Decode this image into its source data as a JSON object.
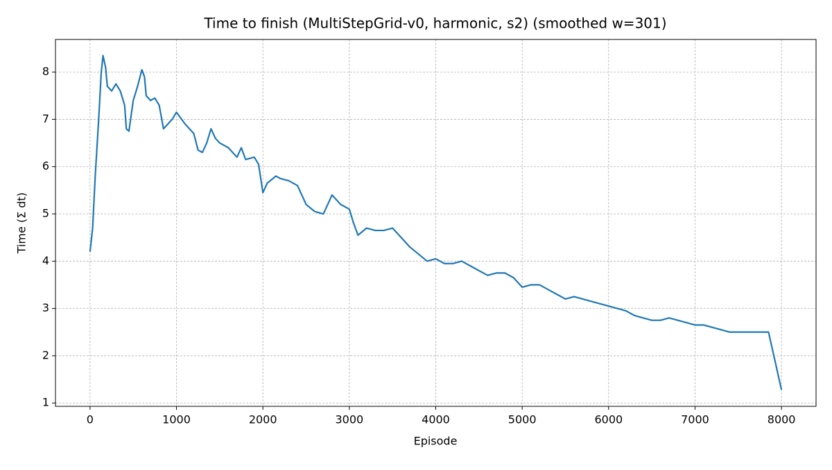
{
  "chart_data": {
    "type": "line",
    "title": "Time to finish (MultiStepGrid-v0, harmonic, s2) (smoothed w=301)",
    "x_label": "Episode",
    "y_label": "Time (Σ dt)",
    "x": [
      0,
      30,
      60,
      100,
      130,
      150,
      180,
      200,
      250,
      300,
      350,
      400,
      420,
      450,
      500,
      550,
      600,
      630,
      650,
      700,
      750,
      800,
      850,
      900,
      950,
      1000,
      1100,
      1200,
      1250,
      1300,
      1350,
      1400,
      1450,
      1500,
      1600,
      1700,
      1750,
      1800,
      1900,
      1950,
      2000,
      2050,
      2150,
      2200,
      2300,
      2400,
      2450,
      2500,
      2600,
      2700,
      2800,
      2900,
      3000,
      3050,
      3100,
      3200,
      3300,
      3400,
      3500,
      3600,
      3700,
      3800,
      3900,
      4000,
      4100,
      4200,
      4300,
      4400,
      4500,
      4600,
      4700,
      4800,
      4900,
      5000,
      5100,
      5200,
      5300,
      5400,
      5500,
      5600,
      5700,
      5800,
      5900,
      6000,
      6100,
      6200,
      6300,
      6400,
      6500,
      6600,
      6700,
      6800,
      6900,
      7000,
      7100,
      7200,
      7300,
      7400,
      7500,
      7600,
      7700,
      7800,
      7850,
      8000
    ],
    "values": [
      4.2,
      4.7,
      5.8,
      7.0,
      8.0,
      8.35,
      8.1,
      7.7,
      7.6,
      7.75,
      7.6,
      7.3,
      6.8,
      6.75,
      7.4,
      7.7,
      8.05,
      7.9,
      7.5,
      7.4,
      7.45,
      7.3,
      6.8,
      6.9,
      7.0,
      7.15,
      6.9,
      6.7,
      6.35,
      6.3,
      6.5,
      6.8,
      6.6,
      6.5,
      6.4,
      6.2,
      6.4,
      6.15,
      6.2,
      6.05,
      5.45,
      5.65,
      5.8,
      5.75,
      5.7,
      5.6,
      5.4,
      5.2,
      5.05,
      5.0,
      5.4,
      5.2,
      5.1,
      4.8,
      4.55,
      4.7,
      4.65,
      4.65,
      4.7,
      4.5,
      4.3,
      4.15,
      4.0,
      4.05,
      3.95,
      3.95,
      4.0,
      3.9,
      3.8,
      3.7,
      3.75,
      3.75,
      3.65,
      3.45,
      3.5,
      3.5,
      3.4,
      3.3,
      3.2,
      3.25,
      3.2,
      3.15,
      3.1,
      3.05,
      3.0,
      2.95,
      2.85,
      2.8,
      2.75,
      2.75,
      2.8,
      2.75,
      2.7,
      2.65,
      2.65,
      2.6,
      2.55,
      2.5,
      2.5,
      2.5,
      2.5,
      2.5,
      2.5,
      1.28
    ],
    "color": "#1f77b4",
    "xlim": [
      -400,
      8400
    ],
    "ylim": [
      0.93,
      8.69
    ],
    "xticks": [
      0,
      1000,
      2000,
      3000,
      4000,
      5000,
      6000,
      7000,
      8000
    ],
    "yticks": [
      1,
      2,
      3,
      4,
      5,
      6,
      7,
      8
    ],
    "grid": true
  }
}
